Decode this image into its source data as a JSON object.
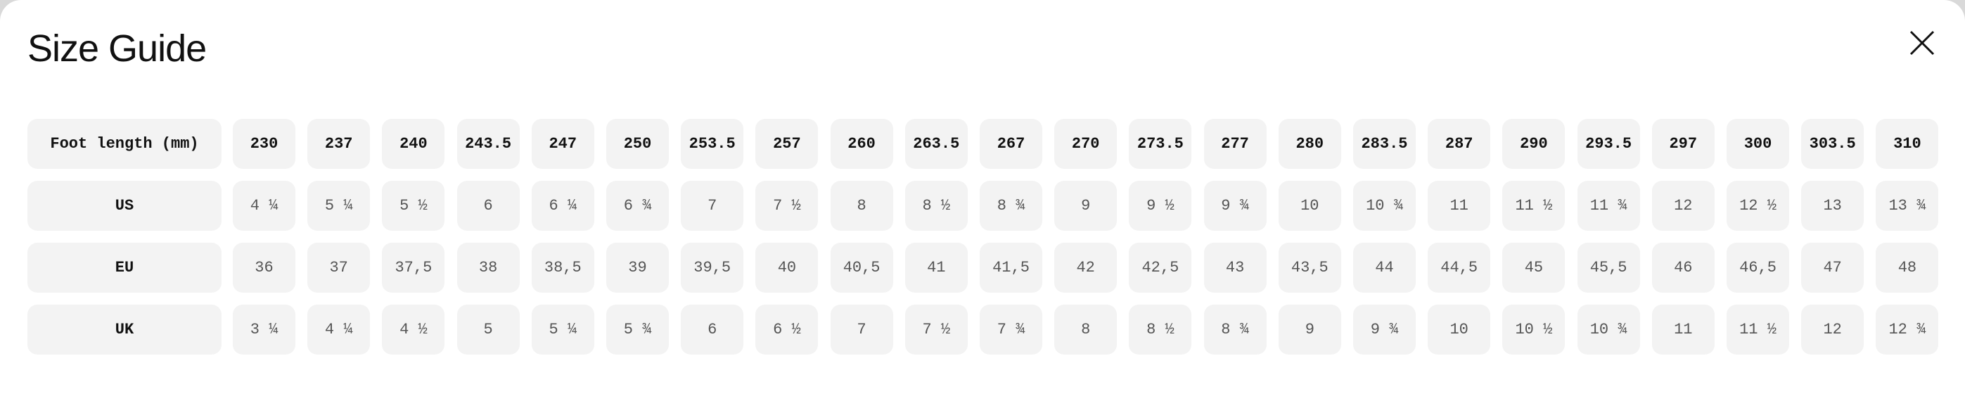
{
  "header": {
    "title": "Size Guide"
  },
  "table": {
    "rows": [
      {
        "label": "Foot length (mm)",
        "cells": [
          "230",
          "237",
          "240",
          "243.5",
          "247",
          "250",
          "253.5",
          "257",
          "260",
          "263.5",
          "267",
          "270",
          "273.5",
          "277",
          "280",
          "283.5",
          "287",
          "290",
          "293.5",
          "297",
          "300",
          "303.5",
          "310"
        ]
      },
      {
        "label": "US",
        "cells": [
          "4 ¼",
          "5 ¼",
          "5 ½",
          "6",
          "6 ¼",
          "6 ¾",
          "7",
          "7 ½",
          "8",
          "8 ½",
          "8 ¾",
          "9",
          "9 ½",
          "9 ¾",
          "10",
          "10 ¾",
          "11",
          "11 ½",
          "11 ¾",
          "12",
          "12 ½",
          "13",
          "13 ¾"
        ]
      },
      {
        "label": "EU",
        "cells": [
          "36",
          "37",
          "37,5",
          "38",
          "38,5",
          "39",
          "39,5",
          "40",
          "40,5",
          "41",
          "41,5",
          "42",
          "42,5",
          "43",
          "43,5",
          "44",
          "44,5",
          "45",
          "45,5",
          "46",
          "46,5",
          "47",
          "48"
        ]
      },
      {
        "label": "UK",
        "cells": [
          "3 ¼",
          "4 ¼",
          "4 ½",
          "5",
          "5 ¼",
          "5 ¾",
          "6",
          "6 ½",
          "7",
          "7 ½",
          "7 ¾",
          "8",
          "8 ½",
          "8 ¾",
          "9",
          "9 ¾",
          "10",
          "10 ½",
          "10 ¾",
          "11",
          "11 ½",
          "12",
          "12 ¾"
        ]
      }
    ]
  }
}
